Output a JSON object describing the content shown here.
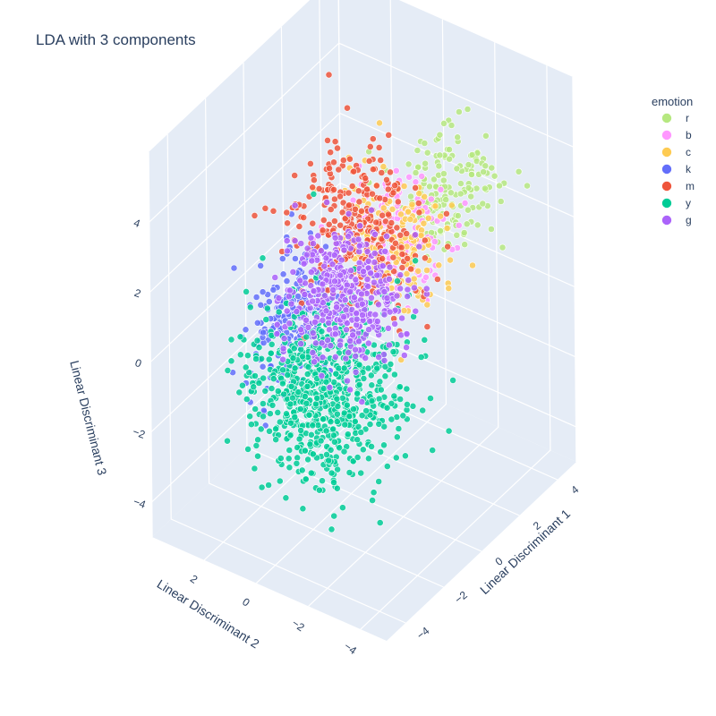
{
  "chart_data": {
    "type": "scatter",
    "mode": "3d",
    "title": "LDA with 3 components",
    "axes": {
      "x": {
        "label": "Linear Discriminant 1",
        "range": [
          -5,
          5
        ],
        "ticks": [
          -4,
          -2,
          0,
          2,
          4
        ]
      },
      "y": {
        "label": "Linear Discriminant 2",
        "range": [
          -5,
          4
        ],
        "ticks": [
          -4,
          -2,
          0,
          2
        ]
      },
      "z": {
        "label": "Linear Discriminant 3",
        "range": [
          -5,
          6
        ],
        "ticks": [
          -4,
          -2,
          0,
          2,
          4
        ]
      }
    },
    "grid": true,
    "legend": {
      "title": "emotion",
      "position": "top-right"
    },
    "series": [
      {
        "name": "r",
        "color": "#b6e880",
        "center": [
          3.2,
          -1.6,
          2.6
        ],
        "spread": [
          0.9,
          0.8,
          0.8
        ],
        "count": 170
      },
      {
        "name": "b",
        "color": "#ff97ff",
        "center": [
          2.0,
          -0.3,
          1.6
        ],
        "spread": [
          0.8,
          0.9,
          0.8
        ],
        "count": 150
      },
      {
        "name": "c",
        "color": "#fecb52",
        "center": [
          4.2,
          1.2,
          -0.3
        ],
        "spread": [
          0.7,
          0.9,
          1.0
        ],
        "count": 200
      },
      {
        "name": "k",
        "color": "#636efa",
        "center": [
          1.2,
          3.2,
          -1.6
        ],
        "spread": [
          1.0,
          0.8,
          0.9
        ],
        "count": 260
      },
      {
        "name": "m",
        "color": "#ef553b",
        "center": [
          1.8,
          1.0,
          1.4
        ],
        "spread": [
          1.0,
          1.0,
          1.0
        ],
        "count": 330
      },
      {
        "name": "y",
        "color": "#00cc96",
        "center": [
          -2.8,
          -1.0,
          -0.3
        ],
        "spread": [
          1.3,
          1.2,
          1.1
        ],
        "count": 800
      },
      {
        "name": "g",
        "color": "#ab63fa",
        "center": [
          0.0,
          0.2,
          0.6
        ],
        "spread": [
          0.9,
          0.9,
          0.8
        ],
        "count": 420
      }
    ]
  }
}
